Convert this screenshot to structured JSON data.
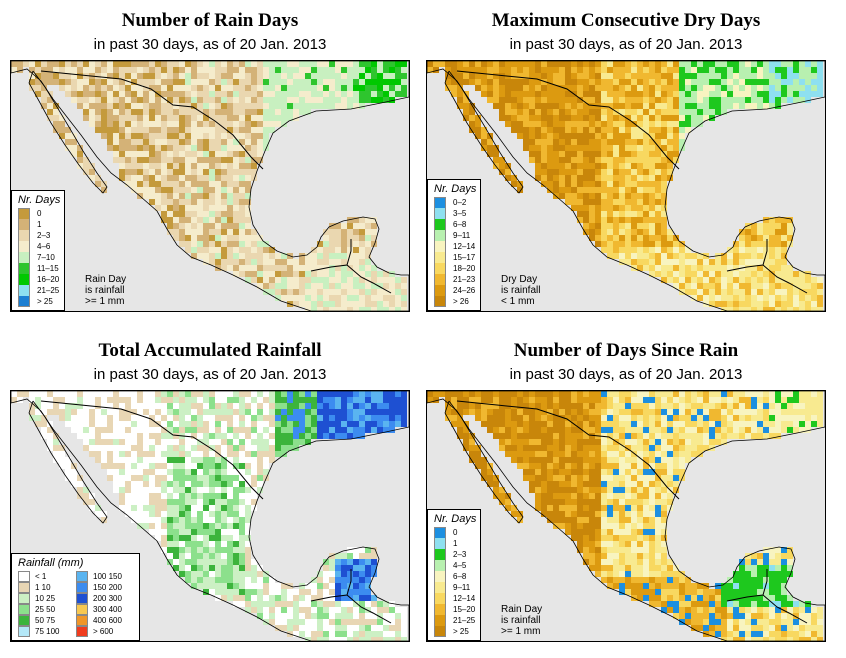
{
  "colors": {
    "ocean": "#e6e6e6",
    "border": "#000000"
  },
  "panels": [
    {
      "title": "Number of Rain Days",
      "subtitle": "in past 30 days, as of  20 Jan. 2013",
      "legend_title": "Nr. Days",
      "legend": [
        {
          "label": "0",
          "color": "#c49a3c"
        },
        {
          "label": "1",
          "color": "#d4b277"
        },
        {
          "label": "2–3",
          "color": "#ead7b0"
        },
        {
          "label": "4–6",
          "color": "#f5eccc"
        },
        {
          "label": "7–10",
          "color": "#c8f0c0"
        },
        {
          "label": "11–15",
          "color": "#2ec52e"
        },
        {
          "label": "16–20",
          "color": "#00c800"
        },
        {
          "label": "21–25",
          "color": "#8ee0f0"
        },
        {
          "label": "> 25",
          "color": "#1c7fd2"
        }
      ],
      "note": [
        "Rain Day",
        "is rainfall",
        ">= 1 mm"
      ]
    },
    {
      "title": "Maximum Consecutive Dry Days",
      "subtitle": "in past 30 days, as of  20 Jan. 2013",
      "legend_title": "Nr. Days",
      "legend": [
        {
          "label": "0–2",
          "color": "#1c8fe0"
        },
        {
          "label": "3–5",
          "color": "#8ee0f0"
        },
        {
          "label": "6–8",
          "color": "#1ec81e"
        },
        {
          "label": "9–11",
          "color": "#b8f0b0"
        },
        {
          "label": "12–14",
          "color": "#f8f4c0"
        },
        {
          "label": "15–17",
          "color": "#f8ea90"
        },
        {
          "label": "18–20",
          "color": "#f8d860"
        },
        {
          "label": "21–23",
          "color": "#f0b830"
        },
        {
          "label": "24–26",
          "color": "#dc9a10"
        },
        {
          "label": "> 26",
          "color": "#c8860a"
        }
      ],
      "note": [
        "Dry Day",
        "is rainfall",
        "< 1 mm"
      ]
    },
    {
      "title": "Total Accumulated Rainfall",
      "subtitle": "in past 30 days, as of  20 Jan. 2013",
      "legend_title": "Rainfall (mm)",
      "legend2": [
        {
          "label": "< 1",
          "color": "#ffffff"
        },
        {
          "label": "100  150",
          "color": "#5ab4f0"
        },
        {
          "label": "1    10",
          "color": "#e8d6b4"
        },
        {
          "label": "150  200",
          "color": "#3c8cf0"
        },
        {
          "label": "10    25",
          "color": "#ccf0c4"
        },
        {
          "label": "200  300",
          "color": "#1e50d2"
        },
        {
          "label": "25    50",
          "color": "#8ce08c"
        },
        {
          "label": "300  400",
          "color": "#f8c850"
        },
        {
          "label": "50    75",
          "color": "#3cb43c"
        },
        {
          "label": "400  600",
          "color": "#f09628"
        },
        {
          "label": "75  100",
          "color": "#b4e8f8"
        },
        {
          "label": "> 600",
          "color": "#f03c1e"
        }
      ]
    },
    {
      "title": "Number of Days Since Rain",
      "subtitle": "in past 30 days, as of  20 Jan. 2013",
      "legend_title": "Nr. Days",
      "legend": [
        {
          "label": "0",
          "color": "#1c8fe0"
        },
        {
          "label": "1",
          "color": "#8ee0f0"
        },
        {
          "label": "2–3",
          "color": "#1ec81e"
        },
        {
          "label": "4–5",
          "color": "#b8f0b0"
        },
        {
          "label": "6–8",
          "color": "#f8f4c0"
        },
        {
          "label": "9–11",
          "color": "#f8ea90"
        },
        {
          "label": "12–14",
          "color": "#f8d860"
        },
        {
          "label": "15–20",
          "color": "#f0b830"
        },
        {
          "label": "21–25",
          "color": "#dc9a10"
        },
        {
          "label": "> 25",
          "color": "#c8860a"
        }
      ],
      "note": [
        "Rain Day",
        "is rainfall",
        ">= 1 mm"
      ]
    }
  ]
}
